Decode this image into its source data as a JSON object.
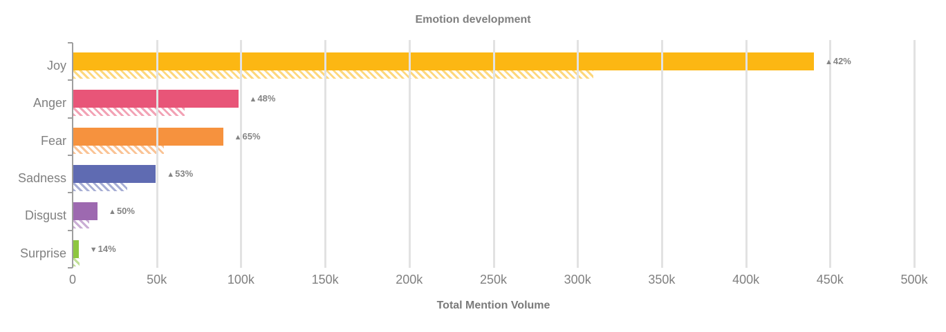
{
  "chart_data": {
    "type": "bar",
    "orientation": "horizontal",
    "title": "Emotion development",
    "xlabel": "Total Mention Volume",
    "grid": true,
    "legend": false,
    "xlim": [
      0,
      500000
    ],
    "x_tick_labels": [
      "0",
      "50k",
      "100k",
      "150k",
      "200k",
      "250k",
      "300k",
      "350k",
      "400k",
      "450k",
      "500k"
    ],
    "categories": [
      "Joy",
      "Anger",
      "Fear",
      "Sadness",
      "Disgust",
      "Surprise"
    ],
    "series": [
      {
        "name": "current-period",
        "style": "solid",
        "values": [
          440000,
          98000,
          89000,
          49000,
          14400,
          3200
        ]
      },
      {
        "name": "previous-period",
        "style": "hatched",
        "values": [
          309000,
          66000,
          54000,
          32000,
          9600,
          3700
        ]
      }
    ],
    "bar_colors": [
      "#FCB713",
      "#E85578",
      "#F6923E",
      "#5F6BB2",
      "#9D69B0",
      "#8DC63F"
    ],
    "change_labels": [
      {
        "direction": "up",
        "arrow": "▲",
        "value": "42%"
      },
      {
        "direction": "up",
        "arrow": "▲",
        "value": "48%"
      },
      {
        "direction": "up",
        "arrow": "▲",
        "value": "65%"
      },
      {
        "direction": "up",
        "arrow": "▲",
        "value": "53%"
      },
      {
        "direction": "up",
        "arrow": "▲",
        "value": "50%"
      },
      {
        "direction": "down",
        "arrow": "▼",
        "value": "14%"
      }
    ],
    "text_color": "#808080",
    "gridline_color": "#e2e2e2"
  }
}
